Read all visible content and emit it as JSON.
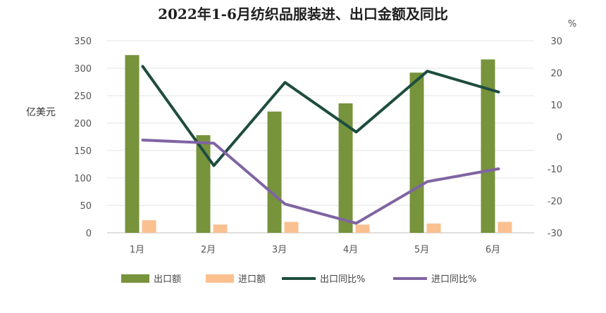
{
  "chart_data": {
    "type": "bar",
    "title": "2022年1-6月纺织品服装进、出口金额及同比",
    "ylabel": "亿美元",
    "y2label": "%",
    "categories": [
      "1月",
      "2月",
      "3月",
      "4月",
      "5月",
      "6月"
    ],
    "ylim": [
      0,
      350
    ],
    "y2lim": [
      -30,
      30
    ],
    "yticks": [
      "0",
      "50",
      "100",
      "150",
      "200",
      "250",
      "300",
      "350"
    ],
    "y2ticks": [
      "-30",
      "-20",
      "-10",
      "0",
      "10",
      "20",
      "30"
    ],
    "series": [
      {
        "name": "出口额",
        "type": "bar",
        "axis": "left",
        "color": "#77933c",
        "values": [
          324,
          178,
          221,
          236,
          292,
          316
        ]
      },
      {
        "name": "进口额",
        "type": "bar",
        "axis": "left",
        "color": "#fac090",
        "values": [
          23,
          15,
          20,
          15,
          17,
          20
        ]
      },
      {
        "name": "出口同比%",
        "type": "line",
        "axis": "right",
        "color": "#1e4d3f",
        "values": [
          22,
          -9,
          17,
          1.5,
          20.5,
          14
        ]
      },
      {
        "name": "进口同比%",
        "type": "line",
        "axis": "right",
        "color": "#8064a2",
        "values": [
          -1,
          -2,
          -21,
          -27,
          -14,
          -10
        ]
      }
    ],
    "grid": true,
    "legend": "bottom"
  }
}
